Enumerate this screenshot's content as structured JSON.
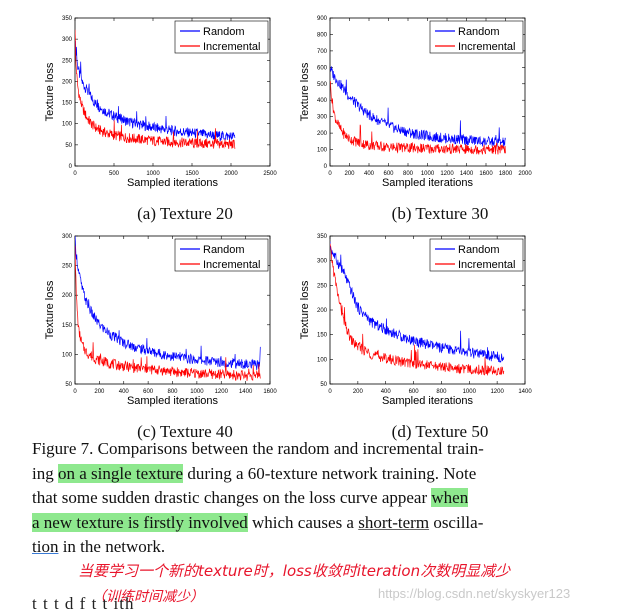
{
  "chart_data": [
    {
      "type": "line",
      "xlabel": "Sampled iterations",
      "ylabel": "Texture loss",
      "xlim": [
        0,
        2500
      ],
      "ylim": [
        0,
        350
      ],
      "xticks": [
        0,
        500,
        1000,
        1500,
        2000,
        2500
      ],
      "yticks": [
        0,
        50,
        100,
        150,
        200,
        250,
        300,
        350
      ],
      "legend_position": "top-right",
      "caption": "(a) Texture 20",
      "series": [
        {
          "name": "Random",
          "color": "#0000ff",
          "x": [
            0,
            10,
            30,
            60,
            100,
            150,
            200,
            250,
            300,
            400,
            500,
            600,
            700,
            800,
            900,
            1000,
            1100,
            1200,
            1300,
            1400,
            1500,
            1600,
            1700,
            1800,
            1900,
            2000,
            2050
          ],
          "y": [
            300,
            270,
            240,
            215,
            195,
            180,
            165,
            150,
            142,
            128,
            118,
            110,
            104,
            99,
            95,
            91,
            88,
            85,
            82,
            80,
            78,
            76,
            74,
            72,
            71,
            70,
            70
          ]
        },
        {
          "name": "Incremental",
          "color": "#ff0000",
          "x": [
            0,
            10,
            30,
            60,
            100,
            150,
            200,
            250,
            300,
            400,
            500,
            600,
            700,
            800,
            900,
            1000,
            1100,
            1200,
            1300,
            1400,
            1500,
            1600,
            1700,
            1800,
            1900,
            2000,
            2050
          ],
          "y": [
            330,
            250,
            195,
            160,
            135,
            115,
            102,
            93,
            86,
            78,
            73,
            69,
            66,
            64,
            62,
            60,
            58,
            57,
            56,
            55,
            54,
            53,
            53,
            52,
            52,
            51,
            51
          ]
        }
      ]
    },
    {
      "type": "line",
      "xlabel": "Sampled iterations",
      "ylabel": "Texture loss",
      "xlim": [
        0,
        2000
      ],
      "ylim": [
        0,
        900
      ],
      "xticks": [
        0,
        200,
        400,
        600,
        800,
        1000,
        1200,
        1400,
        1600,
        1800,
        2000
      ],
      "yticks": [
        0,
        100,
        200,
        300,
        400,
        500,
        600,
        700,
        800,
        900
      ],
      "legend_position": "top-right",
      "caption": "(b) Texture 30",
      "series": [
        {
          "name": "Random",
          "color": "#0000ff",
          "x": [
            0,
            20,
            50,
            100,
            150,
            200,
            300,
            400,
            500,
            600,
            700,
            800,
            900,
            1000,
            1100,
            1200,
            1300,
            1400,
            1500,
            1600,
            1700,
            1800
          ],
          "y": [
            600,
            570,
            540,
            500,
            460,
            420,
            360,
            310,
            275,
            245,
            222,
            205,
            192,
            182,
            174,
            168,
            162,
            157,
            152,
            148,
            145,
            142
          ]
        },
        {
          "name": "Incremental",
          "color": "#ff0000",
          "x": [
            0,
            20,
            50,
            100,
            150,
            200,
            300,
            400,
            500,
            600,
            700,
            800,
            900,
            1000,
            1100,
            1200,
            1300,
            1400,
            1500,
            1600,
            1700,
            1800
          ],
          "y": [
            520,
            400,
            300,
            230,
            190,
            165,
            140,
            128,
            120,
            115,
            112,
            110,
            108,
            106,
            105,
            104,
            103,
            102,
            101,
            100,
            100,
            99
          ]
        }
      ]
    },
    {
      "type": "line",
      "xlabel": "Sampled iterations",
      "ylabel": "Texture loss",
      "xlim": [
        0,
        1600
      ],
      "ylim": [
        50,
        300
      ],
      "xticks": [
        0,
        200,
        400,
        600,
        800,
        1000,
        1200,
        1400,
        1600
      ],
      "yticks": [
        50,
        100,
        150,
        200,
        250,
        300
      ],
      "legend_position": "top-right",
      "caption": "(c) Texture 40",
      "series": [
        {
          "name": "Random",
          "color": "#0000ff",
          "x": [
            0,
            10,
            30,
            60,
            100,
            150,
            200,
            300,
            400,
            500,
            600,
            700,
            800,
            900,
            1000,
            1100,
            1200,
            1300,
            1400,
            1500,
            1520
          ],
          "y": [
            295,
            270,
            240,
            210,
            185,
            165,
            150,
            132,
            120,
            112,
            106,
            101,
            97,
            94,
            91,
            89,
            87,
            85,
            83,
            82,
            82
          ]
        },
        {
          "name": "Incremental",
          "color": "#ff0000",
          "x": [
            0,
            10,
            30,
            60,
            100,
            150,
            200,
            300,
            400,
            500,
            600,
            700,
            800,
            900,
            1000,
            1100,
            1200,
            1300,
            1400,
            1500,
            1520
          ],
          "y": [
            290,
            200,
            140,
            115,
            102,
            95,
            90,
            84,
            80,
            77,
            75,
            73,
            71,
            69,
            68,
            67,
            66,
            65,
            64,
            63,
            63
          ]
        }
      ]
    },
    {
      "type": "line",
      "xlabel": "Sampled iterations",
      "ylabel": "Texture loss",
      "xlim": [
        0,
        1400
      ],
      "ylim": [
        50,
        350
      ],
      "xticks": [
        0,
        200,
        400,
        600,
        800,
        1000,
        1200,
        1400
      ],
      "yticks": [
        50,
        100,
        150,
        200,
        250,
        300,
        350
      ],
      "legend_position": "top-right",
      "caption": "(d) Texture 50",
      "series": [
        {
          "name": "Random",
          "color": "#0000ff",
          "x": [
            0,
            20,
            50,
            100,
            150,
            200,
            300,
            400,
            500,
            600,
            700,
            800,
            900,
            1000,
            1100,
            1200,
            1250
          ],
          "y": [
            330,
            315,
            300,
            275,
            240,
            205,
            175,
            160,
            148,
            138,
            130,
            123,
            118,
            113,
            109,
            105,
            104
          ]
        },
        {
          "name": "Incremental",
          "color": "#ff0000",
          "x": [
            0,
            20,
            50,
            100,
            150,
            200,
            300,
            400,
            500,
            600,
            700,
            800,
            900,
            1000,
            1100,
            1200,
            1250
          ],
          "y": [
            330,
            290,
            240,
            175,
            140,
            125,
            110,
            102,
            96,
            92,
            88,
            85,
            82,
            80,
            78,
            76,
            76
          ]
        }
      ]
    }
  ],
  "caption": {
    "seg1": "Figure 7. Comparisons between the random and incremental train-",
    "seg2": "ing",
    "hl1": "on a single texture",
    "seg3": "during a 60-texture network training. Note",
    "seg4": "that some sudden drastic changes on the loss curve appear",
    "hl2a": "when",
    "hl2b": "a new texture is firstly involved",
    "seg5": "which causes a",
    "ul1": "short-term",
    "seg6": "oscilla-",
    "ul2": "tion",
    "seg7": "in the network."
  },
  "annotation": {
    "line1": "当要学习一个新的texture时，loss收敛时iteration次数明显减少",
    "line2": "（训练时间减少）"
  },
  "watermark": "https://blog.csdn.net/skyskyer123",
  "cutoff_text": "t  t    t          d     f  t  t           ith"
}
